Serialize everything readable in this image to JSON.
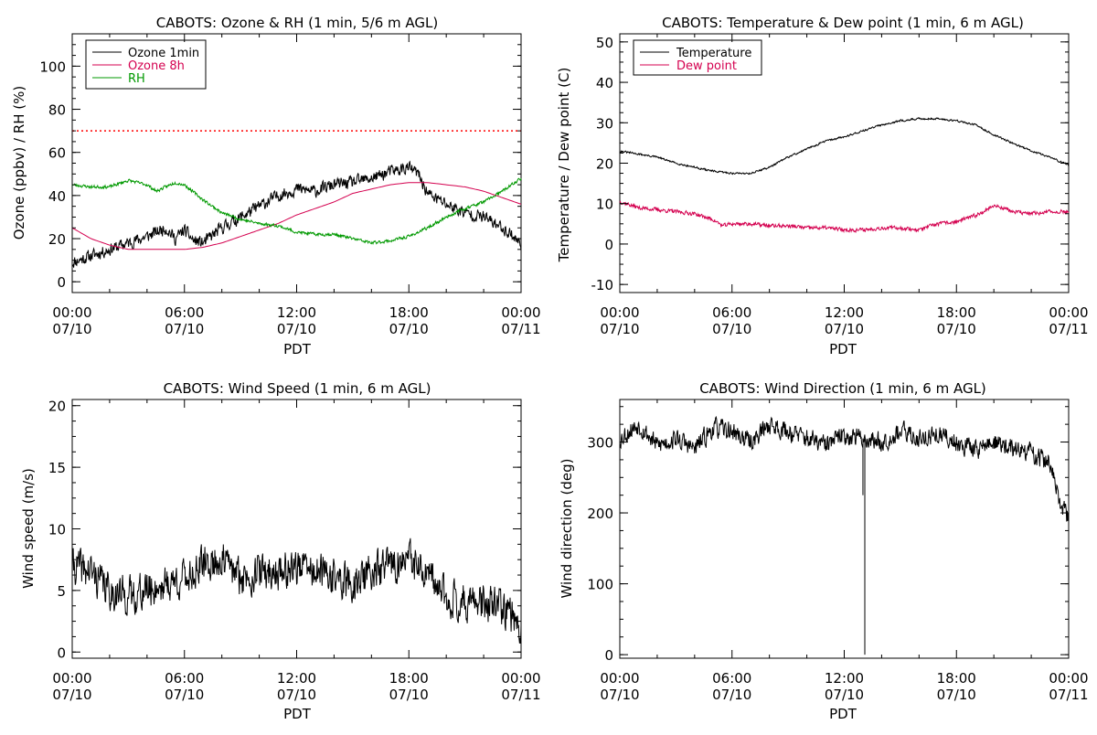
{
  "chart_data": [
    {
      "type": "line",
      "title": "CABOTS: Ozone & RH (1 min, 5/6 m AGL)",
      "xlabel": "PDT",
      "ylabel": "Ozone (ppbv) / RH (%)",
      "x_ticks": [
        {
          "time": "00:00",
          "date": "07/10",
          "hour": 0
        },
        {
          "time": "06:00",
          "date": "07/10",
          "hour": 6
        },
        {
          "time": "12:00",
          "date": "07/10",
          "hour": 12
        },
        {
          "time": "18:00",
          "date": "07/10",
          "hour": 18
        },
        {
          "time": "00:00",
          "date": "07/11",
          "hour": 24
        }
      ],
      "xlim_hours": [
        0,
        24
      ],
      "ylim": [
        -5,
        115
      ],
      "y_ticks": [
        0,
        20,
        40,
        60,
        80,
        100
      ],
      "legend": {
        "placement": "top-left",
        "entries": [
          {
            "label": "Ozone 1min",
            "color": "#000000"
          },
          {
            "label": "Ozone 8h",
            "color": "#d4004f"
          },
          {
            "label": "RH",
            "color": "#009900"
          }
        ]
      },
      "hlines": [
        {
          "y": 70,
          "color": "#ff0000",
          "style": "dotted"
        }
      ],
      "series": [
        {
          "name": "Ozone 1min",
          "color": "#000000",
          "noise": 2.5,
          "seed": 11,
          "points": [
            [
              0,
              9
            ],
            [
              1,
              12
            ],
            [
              2,
              15
            ],
            [
              3,
              18
            ],
            [
              4,
              21
            ],
            [
              5,
              25
            ],
            [
              5.5,
              20
            ],
            [
              6,
              24
            ],
            [
              6.5,
              19
            ],
            [
              7,
              18
            ],
            [
              8,
              25
            ],
            [
              9,
              30
            ],
            [
              10,
              35
            ],
            [
              11,
              40
            ],
            [
              12,
              43
            ],
            [
              13,
              42
            ],
            [
              14,
              45
            ],
            [
              15,
              46
            ],
            [
              16,
              48
            ],
            [
              17,
              51
            ],
            [
              18,
              53
            ],
            [
              18.5,
              50
            ],
            [
              19,
              41
            ],
            [
              20,
              36
            ],
            [
              21,
              32
            ],
            [
              22,
              30
            ],
            [
              23,
              25
            ],
            [
              23.5,
              22
            ],
            [
              24,
              17
            ]
          ]
        },
        {
          "name": "Ozone 8h",
          "color": "#d4004f",
          "points": [
            [
              0,
              25
            ],
            [
              1,
              20
            ],
            [
              2,
              17
            ],
            [
              3,
              15
            ],
            [
              4,
              15
            ],
            [
              5,
              15
            ],
            [
              6,
              15
            ],
            [
              7,
              16
            ],
            [
              8,
              18
            ],
            [
              9,
              21
            ],
            [
              10,
              24
            ],
            [
              11,
              27
            ],
            [
              12,
              31
            ],
            [
              13,
              34
            ],
            [
              14,
              37
            ],
            [
              15,
              41
            ],
            [
              16,
              43
            ],
            [
              17,
              45
            ],
            [
              18,
              46
            ],
            [
              19,
              46
            ],
            [
              20,
              45
            ],
            [
              21,
              44
            ],
            [
              22,
              42
            ],
            [
              23,
              39
            ],
            [
              24,
              36
            ]
          ]
        },
        {
          "name": "RH",
          "color": "#009900",
          "noise": 0.6,
          "seed": 23,
          "points": [
            [
              0,
              45
            ],
            [
              1,
              44
            ],
            [
              2,
              44
            ],
            [
              3,
              47
            ],
            [
              4,
              45
            ],
            [
              4.5,
              42
            ],
            [
              5,
              44
            ],
            [
              5.5,
              46
            ],
            [
              6,
              45
            ],
            [
              7,
              38
            ],
            [
              8,
              32
            ],
            [
              9,
              29
            ],
            [
              10,
              27
            ],
            [
              11,
              26
            ],
            [
              12,
              23
            ],
            [
              13,
              22
            ],
            [
              14,
              22
            ],
            [
              15,
              20
            ],
            [
              15.5,
              19
            ],
            [
              16,
              18
            ],
            [
              17,
              19
            ],
            [
              18,
              21
            ],
            [
              19,
              25
            ],
            [
              20,
              30
            ],
            [
              21,
              34
            ],
            [
              22,
              37
            ],
            [
              23,
              42
            ],
            [
              24,
              48
            ]
          ]
        }
      ]
    },
    {
      "type": "line",
      "title": "CABOTS: Temperature & Dew point (1 min, 6 m AGL)",
      "xlabel": "PDT",
      "ylabel": "Temperature / Dew point (C)",
      "x_ticks": [
        {
          "time": "00:00",
          "date": "07/10",
          "hour": 0
        },
        {
          "time": "06:00",
          "date": "07/10",
          "hour": 6
        },
        {
          "time": "12:00",
          "date": "07/10",
          "hour": 12
        },
        {
          "time": "18:00",
          "date": "07/10",
          "hour": 18
        },
        {
          "time": "00:00",
          "date": "07/11",
          "hour": 24
        }
      ],
      "xlim_hours": [
        0,
        24
      ],
      "ylim": [
        -12,
        52
      ],
      "y_ticks": [
        -10,
        0,
        10,
        20,
        30,
        40,
        50
      ],
      "legend": {
        "placement": "top-left",
        "entries": [
          {
            "label": "Temperature",
            "color": "#000000"
          },
          {
            "label": "Dew point",
            "color": "#d4004f"
          }
        ]
      },
      "series": [
        {
          "name": "Temperature",
          "color": "#000000",
          "noise": 0.2,
          "seed": 31,
          "points": [
            [
              0,
              23
            ],
            [
              2,
              21.5
            ],
            [
              3,
              20
            ],
            [
              4,
              19
            ],
            [
              5,
              18
            ],
            [
              6,
              17.5
            ],
            [
              7,
              17.5
            ],
            [
              8,
              19
            ],
            [
              9,
              21.5
            ],
            [
              10,
              23.5
            ],
            [
              11,
              25.5
            ],
            [
              12,
              26.5
            ],
            [
              13,
              28
            ],
            [
              14,
              29.5
            ],
            [
              15,
              30.5
            ],
            [
              16,
              31
            ],
            [
              17,
              31
            ],
            [
              18,
              30.5
            ],
            [
              19,
              29.5
            ],
            [
              20,
              27
            ],
            [
              21,
              25
            ],
            [
              22,
              23
            ],
            [
              23,
              21.5
            ],
            [
              24,
              19.5
            ]
          ]
        },
        {
          "name": "Dew point",
          "color": "#d4004f",
          "noise": 0.4,
          "seed": 37,
          "points": [
            [
              0,
              10.5
            ],
            [
              1,
              9
            ],
            [
              2,
              8.5
            ],
            [
              3,
              8
            ],
            [
              4,
              7.5
            ],
            [
              5,
              6
            ],
            [
              5.5,
              4.5
            ],
            [
              6,
              5
            ],
            [
              7,
              5
            ],
            [
              8,
              4.5
            ],
            [
              9,
              4.5
            ],
            [
              10,
              4
            ],
            [
              11,
              4
            ],
            [
              12,
              3.5
            ],
            [
              13,
              3.5
            ],
            [
              14,
              4
            ],
            [
              15,
              4
            ],
            [
              16,
              3.5
            ],
            [
              17,
              5
            ],
            [
              18,
              5.5
            ],
            [
              19,
              7
            ],
            [
              20,
              9.5
            ],
            [
              20.5,
              9
            ],
            [
              21,
              8
            ],
            [
              22,
              7.5
            ],
            [
              23,
              8
            ],
            [
              24,
              8
            ]
          ]
        }
      ]
    },
    {
      "type": "line",
      "title": "CABOTS: Wind Speed (1 min, 6 m AGL)",
      "xlabel": "PDT",
      "ylabel": "Wind speed (m/s)",
      "x_ticks": [
        {
          "time": "00:00",
          "date": "07/10",
          "hour": 0
        },
        {
          "time": "06:00",
          "date": "07/10",
          "hour": 6
        },
        {
          "time": "12:00",
          "date": "07/10",
          "hour": 12
        },
        {
          "time": "18:00",
          "date": "07/10",
          "hour": 18
        },
        {
          "time": "00:00",
          "date": "07/11",
          "hour": 24
        }
      ],
      "xlim_hours": [
        0,
        24
      ],
      "ylim": [
        -0.5,
        20.5
      ],
      "y_ticks": [
        0,
        5,
        10,
        15,
        20
      ],
      "series": [
        {
          "name": "",
          "color": "#000000",
          "noise": 1.3,
          "seed": 41,
          "points": [
            [
              0,
              7
            ],
            [
              1,
              6.5
            ],
            [
              2,
              5
            ],
            [
              3,
              4.5
            ],
            [
              4,
              5
            ],
            [
              5,
              5.5
            ],
            [
              6,
              6
            ],
            [
              7,
              7
            ],
            [
              8,
              7.5
            ],
            [
              9,
              6
            ],
            [
              10,
              6.5
            ],
            [
              11,
              6.5
            ],
            [
              12,
              7
            ],
            [
              13,
              6.5
            ],
            [
              14,
              6
            ],
            [
              15,
              5.5
            ],
            [
              16,
              6.5
            ],
            [
              17,
              7
            ],
            [
              18,
              7.5
            ],
            [
              19,
              6
            ],
            [
              20,
              4.5
            ],
            [
              21,
              4
            ],
            [
              22,
              4
            ],
            [
              23,
              3.5
            ],
            [
              24,
              2.2
            ]
          ]
        }
      ]
    },
    {
      "type": "line",
      "title": "CABOTS: Wind Direction (1 min, 6 m AGL)",
      "xlabel": "PDT",
      "ylabel": "Wind direction (deg)",
      "x_ticks": [
        {
          "time": "00:00",
          "date": "07/10",
          "hour": 0
        },
        {
          "time": "06:00",
          "date": "07/10",
          "hour": 6
        },
        {
          "time": "12:00",
          "date": "07/10",
          "hour": 12
        },
        {
          "time": "18:00",
          "date": "07/10",
          "hour": 18
        },
        {
          "time": "00:00",
          "date": "07/11",
          "hour": 24
        }
      ],
      "xlim_hours": [
        0,
        24
      ],
      "ylim": [
        -5,
        360
      ],
      "y_ticks": [
        0,
        100,
        200,
        300
      ],
      "series": [
        {
          "name": "",
          "color": "#000000",
          "noise": 12,
          "seed": 53,
          "points": [
            [
              0,
              305
            ],
            [
              1,
              325
            ],
            [
              1.5,
              310
            ],
            [
              2,
              295
            ],
            [
              3,
              305
            ],
            [
              4,
              290
            ],
            [
              5,
              320
            ],
            [
              6,
              315
            ],
            [
              7,
              300
            ],
            [
              8,
              325
            ],
            [
              9,
              315
            ],
            [
              10,
              305
            ],
            [
              11,
              295
            ],
            [
              12,
              310
            ],
            [
              13,
              305
            ],
            [
              14,
              300
            ],
            [
              15,
              315
            ],
            [
              16,
              305
            ],
            [
              17,
              310
            ],
            [
              18,
              300
            ],
            [
              19,
              290
            ],
            [
              20,
              300
            ],
            [
              21,
              290
            ],
            [
              22,
              285
            ],
            [
              23,
              270
            ],
            [
              23.3,
              240
            ],
            [
              23.5,
              210
            ],
            [
              24,
              195
            ]
          ],
          "spikes": [
            [
              13.1,
              0
            ],
            [
              13,
              225
            ]
          ]
        }
      ]
    }
  ]
}
